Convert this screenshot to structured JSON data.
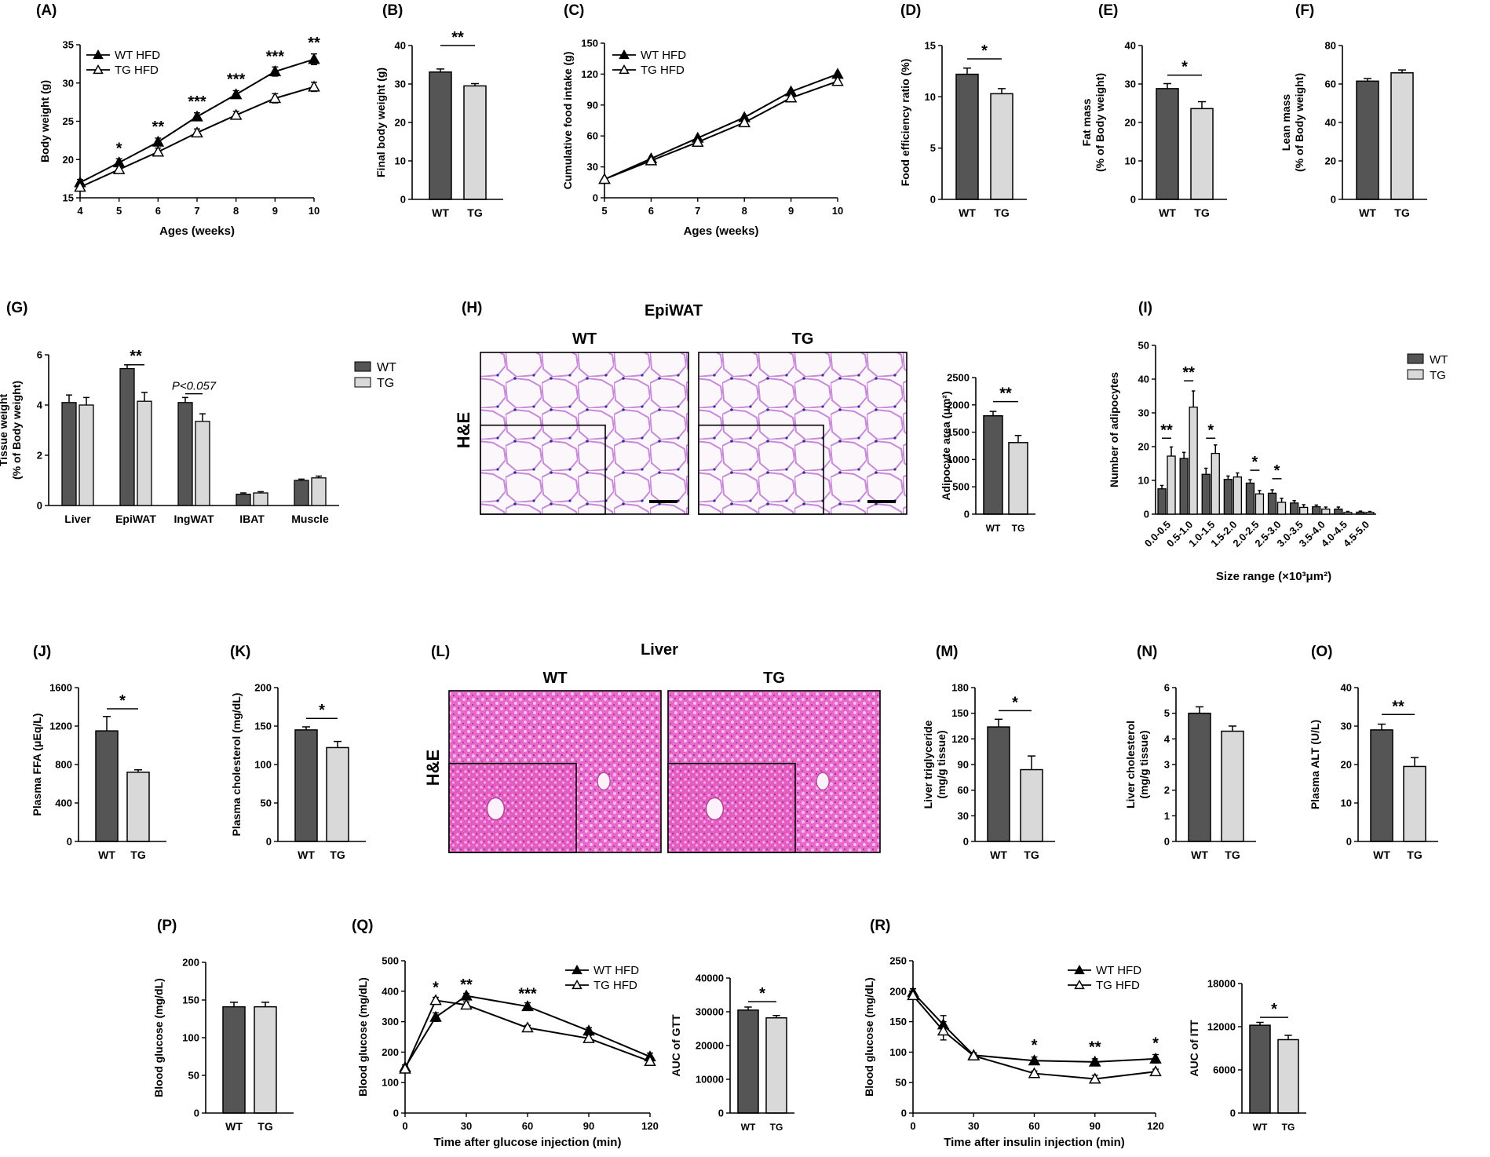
{
  "colors": {
    "wt": "#555555",
    "tg": "#d9d9d9",
    "axis": "#000000"
  },
  "chart_data": [
    {
      "id": "A",
      "label": "(A)",
      "type": "line",
      "x": [
        4,
        5,
        6,
        7,
        8,
        9,
        10
      ],
      "xlabel": "Ages (weeks)",
      "ylabel": "Body weight (g)",
      "ylim": [
        15,
        35
      ],
      "yticks": [
        15,
        20,
        25,
        30,
        35
      ],
      "xticks": [
        4,
        5,
        6,
        7,
        8,
        9,
        10
      ],
      "legend": "top-left",
      "series": [
        {
          "name": "WT HFD",
          "marker": "filled-triangle",
          "values": [
            17.0,
            19.6,
            22.3,
            25.6,
            28.5,
            31.5,
            33.1
          ],
          "err": [
            0.4,
            0.5,
            0.5,
            0.5,
            0.5,
            0.6,
            0.7
          ]
        },
        {
          "name": "TG HFD",
          "marker": "open-triangle",
          "values": [
            16.4,
            18.7,
            21.0,
            23.5,
            25.8,
            28.0,
            29.5
          ],
          "err": [
            0.4,
            0.5,
            0.5,
            0.5,
            0.5,
            0.6,
            0.6
          ]
        }
      ],
      "annotations": [
        {
          "x": 5,
          "y": 20.8,
          "text": "*"
        },
        {
          "x": 6,
          "y": 23.6,
          "text": "**"
        },
        {
          "x": 7,
          "y": 26.9,
          "text": "***"
        },
        {
          "x": 8,
          "y": 29.8,
          "text": "***"
        },
        {
          "x": 9,
          "y": 32.8,
          "text": "***"
        },
        {
          "x": 10,
          "y": 34.6,
          "text": "**"
        }
      ]
    },
    {
      "id": "B",
      "label": "(B)",
      "type": "bar",
      "categories": [
        "WT",
        "TG"
      ],
      "values": [
        33.1,
        29.5
      ],
      "err": [
        0.8,
        0.6
      ],
      "ylabel": "Final body weight (g)",
      "ylim": [
        0,
        40
      ],
      "yticks": [
        0,
        10,
        20,
        30,
        40
      ],
      "sigbars": [
        {
          "from": 0,
          "to": 1,
          "y": 40,
          "text": "**"
        }
      ]
    },
    {
      "id": "C",
      "label": "(C)",
      "type": "line",
      "x": [
        5,
        6,
        7,
        8,
        9,
        10
      ],
      "xlabel": "Ages (weeks)",
      "ylabel": "Cumulative food intake (g)",
      "ylim": [
        0,
        150
      ],
      "yticks": [
        0,
        30,
        60,
        90,
        120,
        150
      ],
      "xticks": [
        5,
        6,
        7,
        8,
        9,
        10
      ],
      "legend": "top-left",
      "series": [
        {
          "name": "WT HFD",
          "marker": "filled-triangle",
          "values": [
            18,
            38,
            58,
            78,
            103,
            120
          ]
        },
        {
          "name": "TG HFD",
          "marker": "open-triangle",
          "values": [
            18,
            36,
            54,
            73,
            97,
            113
          ]
        }
      ]
    },
    {
      "id": "D",
      "label": "(D)",
      "type": "bar",
      "categories": [
        "WT",
        "TG"
      ],
      "values": [
        12.2,
        10.3
      ],
      "err": [
        0.6,
        0.5
      ],
      "ylabel": "Food efficiency ratio (%)",
      "ylim": [
        0,
        15
      ],
      "yticks": [
        0,
        5,
        10,
        15
      ],
      "sigbars": [
        {
          "from": 0,
          "to": 1,
          "y": 13.7,
          "text": "*"
        }
      ]
    },
    {
      "id": "E",
      "label": "(E)",
      "type": "bar",
      "categories": [
        "WT",
        "TG"
      ],
      "values": [
        28.8,
        23.6
      ],
      "err": [
        1.3,
        1.8
      ],
      "ylabel": "Fat mass",
      "ylabel2": "(% of Body weight)",
      "ylim": [
        0,
        40
      ],
      "yticks": [
        0,
        10,
        20,
        30,
        40
      ],
      "sigbars": [
        {
          "from": 0,
          "to": 1,
          "y": 32.3,
          "text": "*"
        }
      ]
    },
    {
      "id": "F",
      "label": "(F)",
      "type": "bar",
      "categories": [
        "WT",
        "TG"
      ],
      "values": [
        61.5,
        65.8
      ],
      "err": [
        1.3,
        1.5
      ],
      "ylabel": "Lean mass",
      "ylabel2": "(% of Body weight)",
      "ylim": [
        0,
        80
      ],
      "yticks": [
        0,
        20,
        40,
        60,
        80
      ],
      "sigbars": []
    },
    {
      "id": "G",
      "label": "(G)",
      "type": "bar",
      "categories": [
        "Liver",
        "EpiWAT",
        "IngWAT",
        "IBAT",
        "Muscle"
      ],
      "ylabel": "Tissue weight",
      "ylabel2": "(% of Body weight)",
      "ylim": [
        0,
        6
      ],
      "yticks": [
        0,
        2,
        4,
        6
      ],
      "legend": "right",
      "series": [
        {
          "name": "WT",
          "values": [
            4.1,
            5.45,
            4.1,
            0.45,
            1.0
          ],
          "err": [
            0.3,
            0.15,
            0.2,
            0.05,
            0.05
          ]
        },
        {
          "name": "TG",
          "values": [
            4.0,
            4.15,
            3.35,
            0.5,
            1.1
          ],
          "err": [
            0.3,
            0.35,
            0.3,
            0.05,
            0.07
          ]
        }
      ],
      "annotations": [
        {
          "cat": 1,
          "y": 5.85,
          "text": "**"
        },
        {
          "cat": 2,
          "y": 4.7,
          "text": "P<0.057",
          "italic": true
        }
      ]
    },
    {
      "id": "H",
      "label": "(H)",
      "type": "bar",
      "title": "EpiWAT",
      "panel_headers": [
        "WT",
        "TG"
      ],
      "stain": "H&E",
      "categories": [
        "WT",
        "TG"
      ],
      "values": [
        1800,
        1310
      ],
      "err": [
        80,
        130
      ],
      "ylabel": "Adipocyte area (μm²)",
      "ylim": [
        0,
        2500
      ],
      "yticks": [
        0,
        500,
        1000,
        1500,
        2000,
        2500
      ],
      "sigbars": [
        {
          "from": 0,
          "to": 1,
          "y": 2060,
          "text": "**"
        }
      ]
    },
    {
      "id": "I",
      "label": "(I)",
      "type": "bar",
      "categories": [
        "0.0-0.5",
        "0.5-1.0",
        "1.0-1.5",
        "1.5-2.0",
        "2.0-2.5",
        "2.5-3.0",
        "3.0-3.5",
        "3.5-4.0",
        "4.0-4.5",
        "4.5-5.0"
      ],
      "xlabel": "Size range (×10³μm²)",
      "ylabel": "Number of adipocytes",
      "ylim": [
        0,
        50
      ],
      "yticks": [
        0,
        10,
        20,
        30,
        40,
        50
      ],
      "legend": "top-right",
      "series": [
        {
          "name": "WT",
          "values": [
            7.5,
            16.5,
            11.8,
            10.3,
            9.2,
            6.2,
            3.3,
            2.2,
            1.5,
            0.6
          ],
          "err": [
            1.0,
            1.8,
            1.8,
            1.0,
            1.0,
            1.0,
            0.7,
            0.5,
            0.6,
            0.3
          ]
        },
        {
          "name": "TG",
          "values": [
            17.2,
            31.7,
            18.0,
            11.0,
            6.0,
            3.5,
            2.0,
            1.5,
            0.5,
            0.5
          ],
          "err": [
            2.7,
            4.8,
            2.5,
            1.2,
            1.0,
            1.2,
            0.8,
            0.6,
            0.3,
            0.3
          ]
        }
      ],
      "sigbars": [
        {
          "cat": 0,
          "y": 22.5,
          "text": "**"
        },
        {
          "cat": 1,
          "y": 39.5,
          "text": "**"
        },
        {
          "cat": 2,
          "y": 22.5,
          "text": "*"
        },
        {
          "cat": 4,
          "y": 13.0,
          "text": "*"
        },
        {
          "cat": 5,
          "y": 10.5,
          "text": "*"
        }
      ]
    },
    {
      "id": "J",
      "label": "(J)",
      "type": "bar",
      "categories": [
        "WT",
        "TG"
      ],
      "values": [
        1150,
        720
      ],
      "err": [
        150,
        25
      ],
      "ylabel": "Plasma FFA (μEq/L)",
      "ylim": [
        0,
        1600
      ],
      "yticks": [
        0,
        400,
        800,
        1200,
        1600
      ],
      "sigbars": [
        {
          "from": 0,
          "to": 1,
          "y": 1380,
          "text": "*"
        }
      ]
    },
    {
      "id": "K",
      "label": "(K)",
      "type": "bar",
      "categories": [
        "WT",
        "TG"
      ],
      "values": [
        145,
        122
      ],
      "err": [
        4,
        8
      ],
      "ylabel": "Plasma cholesterol (mg/dL)",
      "ylim": [
        0,
        200
      ],
      "yticks": [
        0,
        50,
        100,
        150,
        200
      ],
      "sigbars": [
        {
          "from": 0,
          "to": 1,
          "y": 160,
          "text": "*"
        }
      ]
    },
    {
      "id": "L",
      "label": "(L)",
      "type": "image-panel",
      "title": "Liver",
      "panel_headers": [
        "WT",
        "TG"
      ],
      "stain": "H&E"
    },
    {
      "id": "M",
      "label": "(M)",
      "type": "bar",
      "categories": [
        "WT",
        "TG"
      ],
      "values": [
        134,
        84
      ],
      "err": [
        9,
        16
      ],
      "ylabel": "Liver triglyceride",
      "ylabel2": "(mg/g tissue)",
      "ylim": [
        0,
        180
      ],
      "yticks": [
        0,
        30,
        60,
        90,
        120,
        150,
        180
      ],
      "sigbars": [
        {
          "from": 0,
          "to": 1,
          "y": 153,
          "text": "*"
        }
      ]
    },
    {
      "id": "N",
      "label": "(N)",
      "type": "bar",
      "categories": [
        "WT",
        "TG"
      ],
      "values": [
        5.0,
        4.3
      ],
      "err": [
        0.25,
        0.2
      ],
      "ylabel": "Liver cholesterol",
      "ylabel2": "(mg/g tissue)",
      "ylim": [
        0,
        6
      ],
      "yticks": [
        0,
        1,
        2,
        3,
        4,
        5,
        6
      ],
      "sigbars": []
    },
    {
      "id": "O",
      "label": "(O)",
      "type": "bar",
      "categories": [
        "WT",
        "TG"
      ],
      "values": [
        29,
        19.5
      ],
      "err": [
        1.5,
        2.3
      ],
      "ylabel": "Plasma ALT (U/L)",
      "ylim": [
        0,
        40
      ],
      "yticks": [
        0,
        10,
        20,
        30,
        40
      ],
      "sigbars": [
        {
          "from": 0,
          "to": 1,
          "y": 33,
          "text": "**"
        }
      ]
    },
    {
      "id": "P",
      "label": "(P)",
      "type": "bar",
      "categories": [
        "WT",
        "TG"
      ],
      "values": [
        141,
        141
      ],
      "err": [
        6,
        6
      ],
      "ylabel": "Blood glucose (mg/dL)",
      "ylim": [
        0,
        200
      ],
      "yticks": [
        0,
        50,
        100,
        150,
        200
      ],
      "sigbars": []
    },
    {
      "id": "Q",
      "label": "(Q)",
      "type": "line",
      "x": [
        0,
        15,
        30,
        60,
        90,
        120
      ],
      "xlabel": "Time after glucose injection (min)",
      "ylabel": "Blood glucose (mg/dL)",
      "ylim": [
        0,
        500
      ],
      "yticks": [
        0,
        100,
        200,
        300,
        400,
        500
      ],
      "xticks": [
        0,
        30,
        60,
        90,
        120
      ],
      "legend": "top-right",
      "series": [
        {
          "name": "WT HFD",
          "marker": "filled-triangle",
          "values": [
            150,
            315,
            385,
            350,
            270,
            185
          ],
          "err": [
            8,
            14,
            8,
            12,
            10,
            12
          ]
        },
        {
          "name": "TG HFD",
          "marker": "open-triangle",
          "values": [
            145,
            370,
            355,
            280,
            245,
            170
          ],
          "err": [
            8,
            10,
            10,
            8,
            10,
            10
          ]
        }
      ],
      "annotations": [
        {
          "x": 15,
          "y": 395,
          "text": "*"
        },
        {
          "x": 30,
          "y": 405,
          "text": "**"
        },
        {
          "x": 60,
          "y": 375,
          "text": "***"
        }
      ]
    },
    {
      "id": "Q-AUC",
      "label": "",
      "type": "bar",
      "categories": [
        "WT",
        "TG"
      ],
      "values": [
        30500,
        28200
      ],
      "err": [
        900,
        700
      ],
      "ylabel": "AUC of GTT",
      "ylim": [
        0,
        40000
      ],
      "yticks": [
        0,
        10000,
        20000,
        30000,
        40000
      ],
      "sigbars": [
        {
          "from": 0,
          "to": 1,
          "y": 33000,
          "text": "*"
        }
      ]
    },
    {
      "id": "R",
      "label": "(R)",
      "type": "line",
      "x": [
        0,
        15,
        30,
        60,
        90,
        120
      ],
      "xlabel": "Time after insulin injection (min)",
      "ylabel": "Blood glucose (mg/dL)",
      "ylim": [
        0,
        250
      ],
      "yticks": [
        0,
        50,
        100,
        150,
        200,
        250
      ],
      "xticks": [
        0,
        30,
        60,
        90,
        120
      ],
      "legend": "top-right",
      "series": [
        {
          "name": "WT HFD",
          "marker": "filled-triangle",
          "values": [
            198,
            145,
            95,
            86,
            84,
            89
          ],
          "err": [
            6,
            15,
            4,
            6,
            5,
            7
          ]
        },
        {
          "name": "TG HFD",
          "marker": "open-triangle",
          "values": [
            193,
            135,
            94,
            65,
            56,
            68
          ],
          "err": [
            6,
            15,
            4,
            4,
            6,
            4
          ]
        }
      ],
      "annotations": [
        {
          "x": 60,
          "y": 103,
          "text": "*"
        },
        {
          "x": 90,
          "y": 100,
          "text": "**"
        },
        {
          "x": 120,
          "y": 106,
          "text": "*"
        }
      ]
    },
    {
      "id": "R-AUC",
      "label": "",
      "type": "bar",
      "categories": [
        "WT",
        "TG"
      ],
      "values": [
        12200,
        10200
      ],
      "err": [
        400,
        600
      ],
      "ylabel": "AUC of ITT",
      "ylim": [
        0,
        18000
      ],
      "yticks": [
        0,
        6000,
        12000,
        18000
      ],
      "sigbars": [
        {
          "from": 0,
          "to": 1,
          "y": 13300,
          "text": "*"
        }
      ]
    }
  ]
}
